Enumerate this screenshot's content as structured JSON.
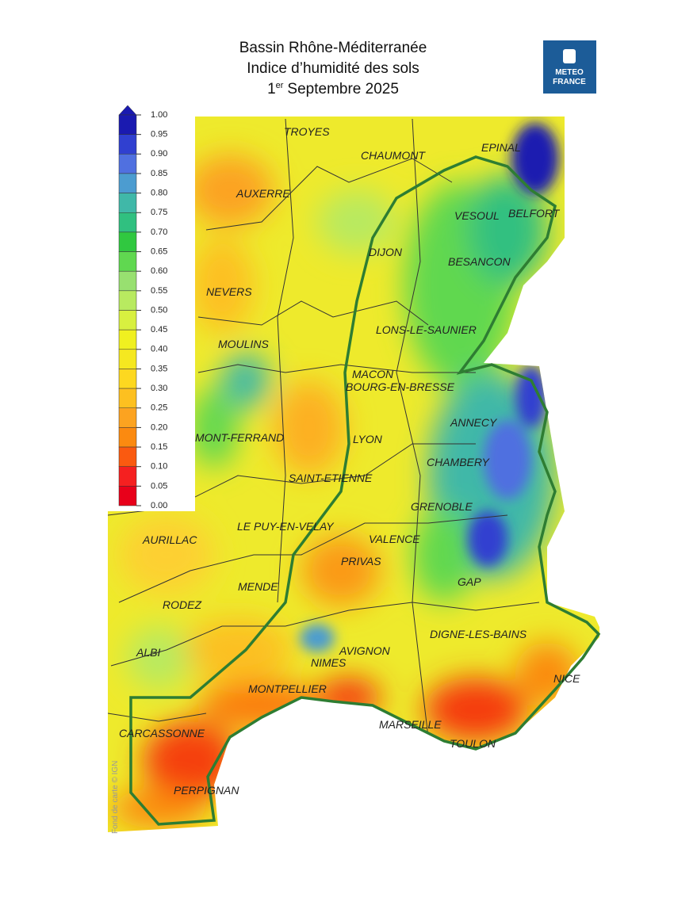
{
  "header": {
    "title": {
      "line1": "Bassin Rhône-Méditerranée",
      "line2": "Indice d’humidité des sols",
      "line3_day": "1",
      "line3_sup": "er",
      "line3_rest": "Septembre 2025"
    }
  },
  "logo": {
    "line1": "METEO",
    "line2": "FRANCE"
  },
  "legend": {
    "ticks": [
      {
        "value": 1,
        "label": "1.00"
      },
      {
        "value": 0.95,
        "label": "0.95"
      },
      {
        "value": 0.9,
        "label": "0.90"
      },
      {
        "value": 0.85,
        "label": "0.85"
      },
      {
        "value": 0.8,
        "label": "0.80"
      },
      {
        "value": 0.75,
        "label": "0.75"
      },
      {
        "value": 0.7,
        "label": "0.70"
      },
      {
        "value": 0.65,
        "label": "0.65"
      },
      {
        "value": 0.6,
        "label": "0.60"
      },
      {
        "value": 0.55,
        "label": "0.55"
      },
      {
        "value": 0.5,
        "label": "0.50"
      },
      {
        "value": 0.45,
        "label": "0.45"
      },
      {
        "value": 0.4,
        "label": "0.40"
      },
      {
        "value": 0.35,
        "label": "0.35"
      },
      {
        "value": 0.3,
        "label": "0.30"
      },
      {
        "value": 0.25,
        "label": "0.25"
      },
      {
        "value": 0.2,
        "label": "0.20"
      },
      {
        "value": 0.15,
        "label": "0.15"
      },
      {
        "value": 0.1,
        "label": "0.10"
      },
      {
        "value": 0.05,
        "label": "0.05"
      },
      {
        "value": 0,
        "label": "0.00"
      }
    ],
    "colors": [
      "#1a1ab0",
      "#3040d0",
      "#5070e0",
      "#4c9cd0",
      "#40b8a8",
      "#30c080",
      "#30c840",
      "#60d850",
      "#98e070",
      "#b8ea60",
      "#d8f040",
      "#f0f020",
      "#f5e820",
      "#fdd820",
      "#fdc020",
      "#fca320",
      "#fb8a10",
      "#fa5a10",
      "#f52020",
      "#e8001a"
    ]
  },
  "map": {
    "cities": [
      "TROYES",
      "CHAUMONT",
      "EPINAL",
      "AUXERRE",
      "VESOUL",
      "BELFORT",
      "DIJON",
      "BESANCON",
      "NEVERS",
      "LONS-LE-SAUNIER",
      "MOULINS",
      "MACON",
      "BOURG-EN-BRESSE",
      "ANNECY",
      "MONT-FERRAND",
      "LYON",
      "CHAMBERY",
      "SAINT-ETIENNE",
      "GRENOBLE",
      "LE PUY-EN-VELAY",
      "AURILLAC",
      "VALENCE",
      "PRIVAS",
      "GAP",
      "MENDE",
      "RODEZ",
      "DIGNE-LES-BAINS",
      "ALBI",
      "AVIGNON",
      "NIMES",
      "MONTPELLIER",
      "NICE",
      "CARCASSONNE",
      "MARSEILLE",
      "TOULON",
      "PERPIGNAN"
    ],
    "credit": "Fond de carte © IGN"
  }
}
